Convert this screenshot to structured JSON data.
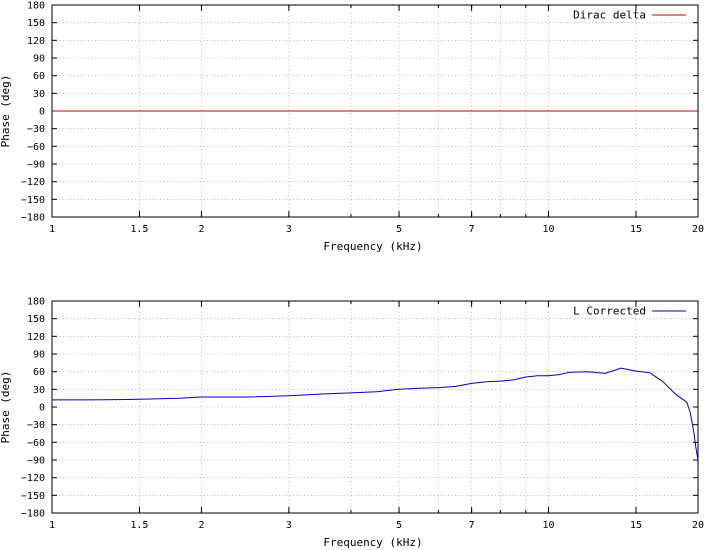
{
  "chart_data": [
    {
      "type": "line",
      "xscale": "log",
      "xlabel": "Frequency (kHz)",
      "ylabel": "Phase (deg)",
      "xlim": [
        1,
        20
      ],
      "ylim": [
        -180,
        180
      ],
      "xticks": [
        1,
        1.5,
        2,
        3,
        5,
        7,
        10,
        15,
        20
      ],
      "xtick_labels": [
        "1",
        "1.5",
        "2",
        "3",
        "5",
        "7",
        "10",
        "15",
        "20"
      ],
      "xgrid": [
        1,
        1.5,
        2,
        3,
        4,
        5,
        6,
        7,
        8,
        9,
        10,
        15,
        20
      ],
      "yticks": [
        180,
        150,
        120,
        90,
        60,
        30,
        0,
        -30,
        -60,
        -90,
        -120,
        -150,
        -180
      ],
      "ytick_labels": [
        "180",
        "150",
        "120",
        "90",
        "60",
        "30",
        "0",
        "−30",
        "−60",
        "−90",
        "−120",
        "−150",
        "−180"
      ],
      "grid": true,
      "legend_position": "top-right",
      "series": [
        {
          "name": "Dirac delta",
          "color": "#cc0000",
          "x": [
            1,
            20
          ],
          "y": [
            0,
            0
          ]
        }
      ]
    },
    {
      "type": "line",
      "xscale": "log",
      "xlabel": "Frequency (kHz)",
      "ylabel": "Phase (deg)",
      "xlim": [
        1,
        20
      ],
      "ylim": [
        -180,
        180
      ],
      "xticks": [
        1,
        1.5,
        2,
        3,
        5,
        7,
        10,
        15,
        20
      ],
      "xtick_labels": [
        "1",
        "1.5",
        "2",
        "3",
        "5",
        "7",
        "10",
        "15",
        "20"
      ],
      "xgrid": [
        1,
        1.5,
        2,
        3,
        4,
        5,
        6,
        7,
        8,
        9,
        10,
        15,
        20
      ],
      "yticks": [
        180,
        150,
        120,
        90,
        60,
        30,
        0,
        -30,
        -60,
        -90,
        -120,
        -150,
        -180
      ],
      "ytick_labels": [
        "180",
        "150",
        "120",
        "90",
        "60",
        "30",
        "0",
        "−30",
        "−60",
        "−90",
        "−120",
        "−150",
        "−180"
      ],
      "grid": true,
      "legend_position": "top-right",
      "series": [
        {
          "name": "L Corrected",
          "color": "#0000cc",
          "x": [
            1,
            1.2,
            1.5,
            1.8,
            2,
            2.5,
            3,
            3.5,
            4,
            4.5,
            5,
            5.5,
            6,
            6.5,
            7,
            7.5,
            8,
            8.5,
            9,
            9.5,
            10,
            10.5,
            11,
            12,
            13,
            14,
            15,
            16,
            17,
            18,
            18.5,
            19,
            19.3,
            19.6,
            19.8,
            20
          ],
          "y": [
            12,
            12,
            13,
            15,
            17,
            17,
            19,
            22,
            24,
            26,
            30,
            32,
            33,
            35,
            40,
            43,
            44,
            46,
            51,
            53,
            53,
            55,
            59,
            60,
            57,
            66,
            61,
            58,
            43,
            22,
            15,
            8,
            -10,
            -40,
            -68,
            -90
          ]
        }
      ]
    }
  ]
}
